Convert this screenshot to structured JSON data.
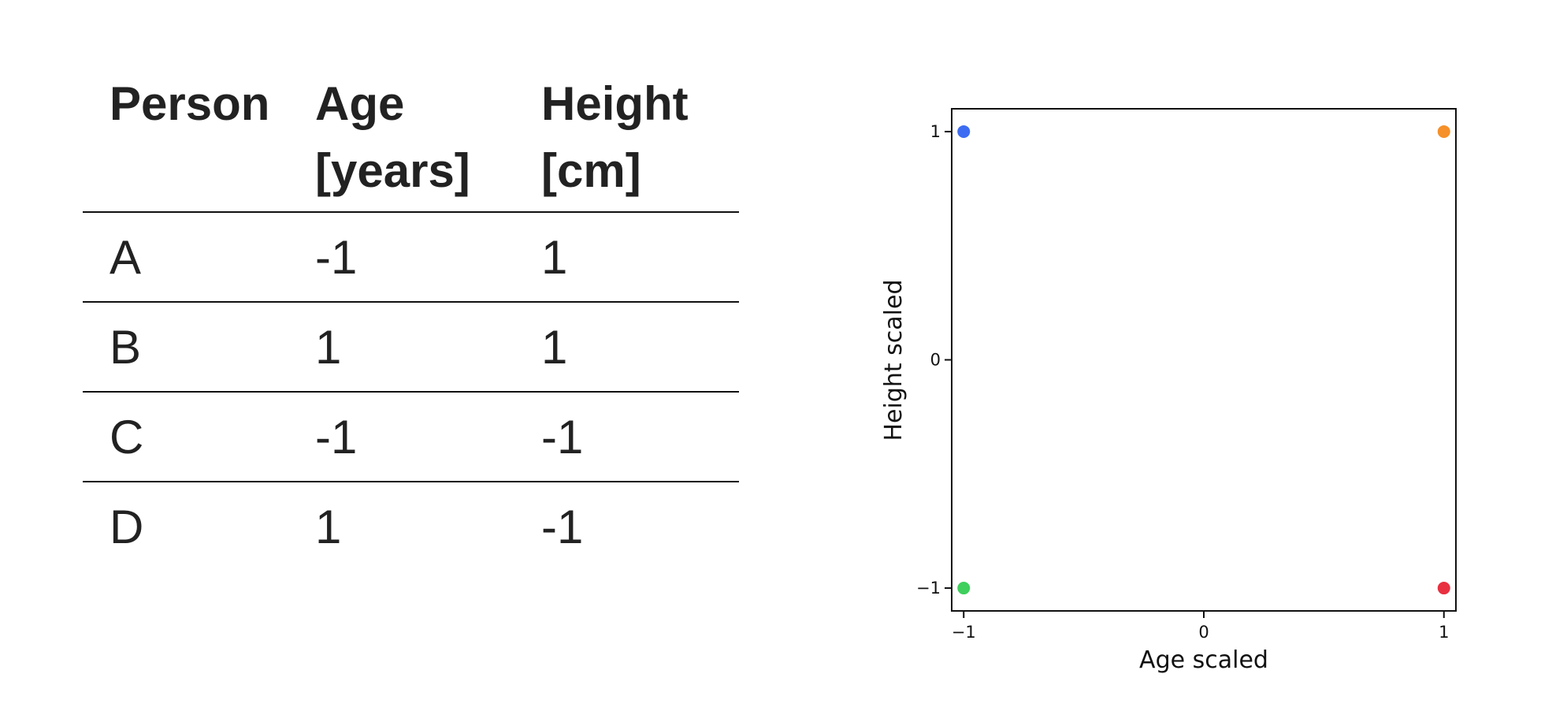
{
  "table": {
    "headers": [
      "Person",
      "Age [years]",
      "Height [cm]"
    ],
    "header_lines": [
      [
        "Person"
      ],
      [
        "Age",
        "[years]"
      ],
      [
        "Height",
        "[cm]"
      ]
    ],
    "rows": [
      [
        "A",
        "-1",
        "1"
      ],
      [
        "B",
        "1",
        "1"
      ],
      [
        "C",
        "-1",
        "-1"
      ],
      [
        "D",
        "1",
        "-1"
      ]
    ]
  },
  "chart_data": {
    "type": "scatter",
    "title": "",
    "xlabel": "Age scaled",
    "ylabel": "Height scaled",
    "xlim": [
      -1.05,
      1.05
    ],
    "ylim": [
      -1.1,
      1.1
    ],
    "xticks": [
      -1,
      0,
      1
    ],
    "yticks": [
      -1,
      0,
      1
    ],
    "xtick_labels": [
      "−1",
      "0",
      "1"
    ],
    "ytick_labels": [
      "−1",
      "0",
      "1"
    ],
    "grid": false,
    "points": [
      {
        "x": -1,
        "y": 1,
        "color": "#3d6cf2"
      },
      {
        "x": 1,
        "y": 1,
        "color": "#f5902a"
      },
      {
        "x": -1,
        "y": -1,
        "color": "#3ecf5c"
      },
      {
        "x": 1,
        "y": -1,
        "color": "#e83040"
      }
    ]
  }
}
